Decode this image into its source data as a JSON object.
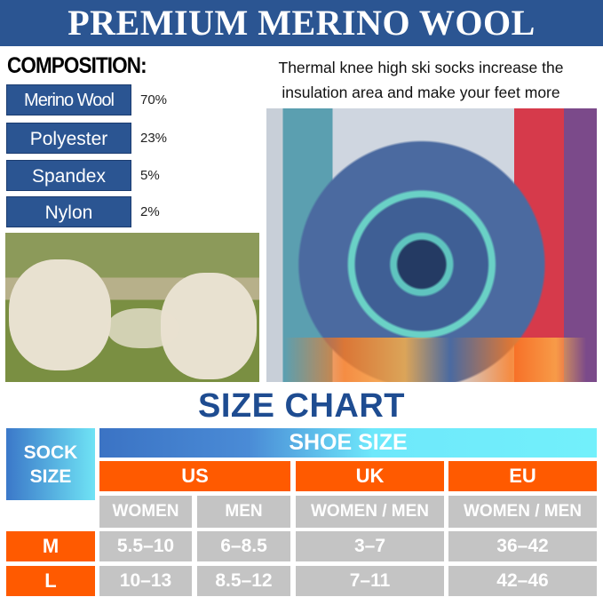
{
  "header": {
    "title": "PREMIUM MERINO WOOL"
  },
  "composition": {
    "heading": "COMPOSITION:",
    "items": [
      {
        "label": "Merino Wool",
        "percent": "70%"
      },
      {
        "label": "Polyester",
        "percent": "23%"
      },
      {
        "label": "Spandex",
        "percent": "5%"
      },
      {
        "label": "Nylon",
        "percent": "2%"
      }
    ]
  },
  "description": "Thermal knee high ski socks increase the insulation area and make your feet more comfortable.",
  "size_chart": {
    "title": "SIZE CHART",
    "sock_size_label": "SOCK SIZE",
    "shoe_size_label": "SHOE SIZE",
    "regions": [
      "US",
      "UK",
      "EU"
    ],
    "sub_headers": [
      "WOMEN",
      "MEN",
      "WOMEN / MEN",
      "WOMEN / MEN"
    ],
    "rows": [
      {
        "size": "M",
        "values": [
          "5.5–10",
          "6–8.5",
          "3–7",
          "36–42"
        ]
      },
      {
        "size": "L",
        "values": [
          "10–13",
          "8.5–12",
          "7–11",
          "42–46"
        ]
      }
    ]
  },
  "colors": {
    "brand_blue": "#2b5592",
    "orange": "#ff5a00",
    "gray": "#c4c4c4"
  }
}
